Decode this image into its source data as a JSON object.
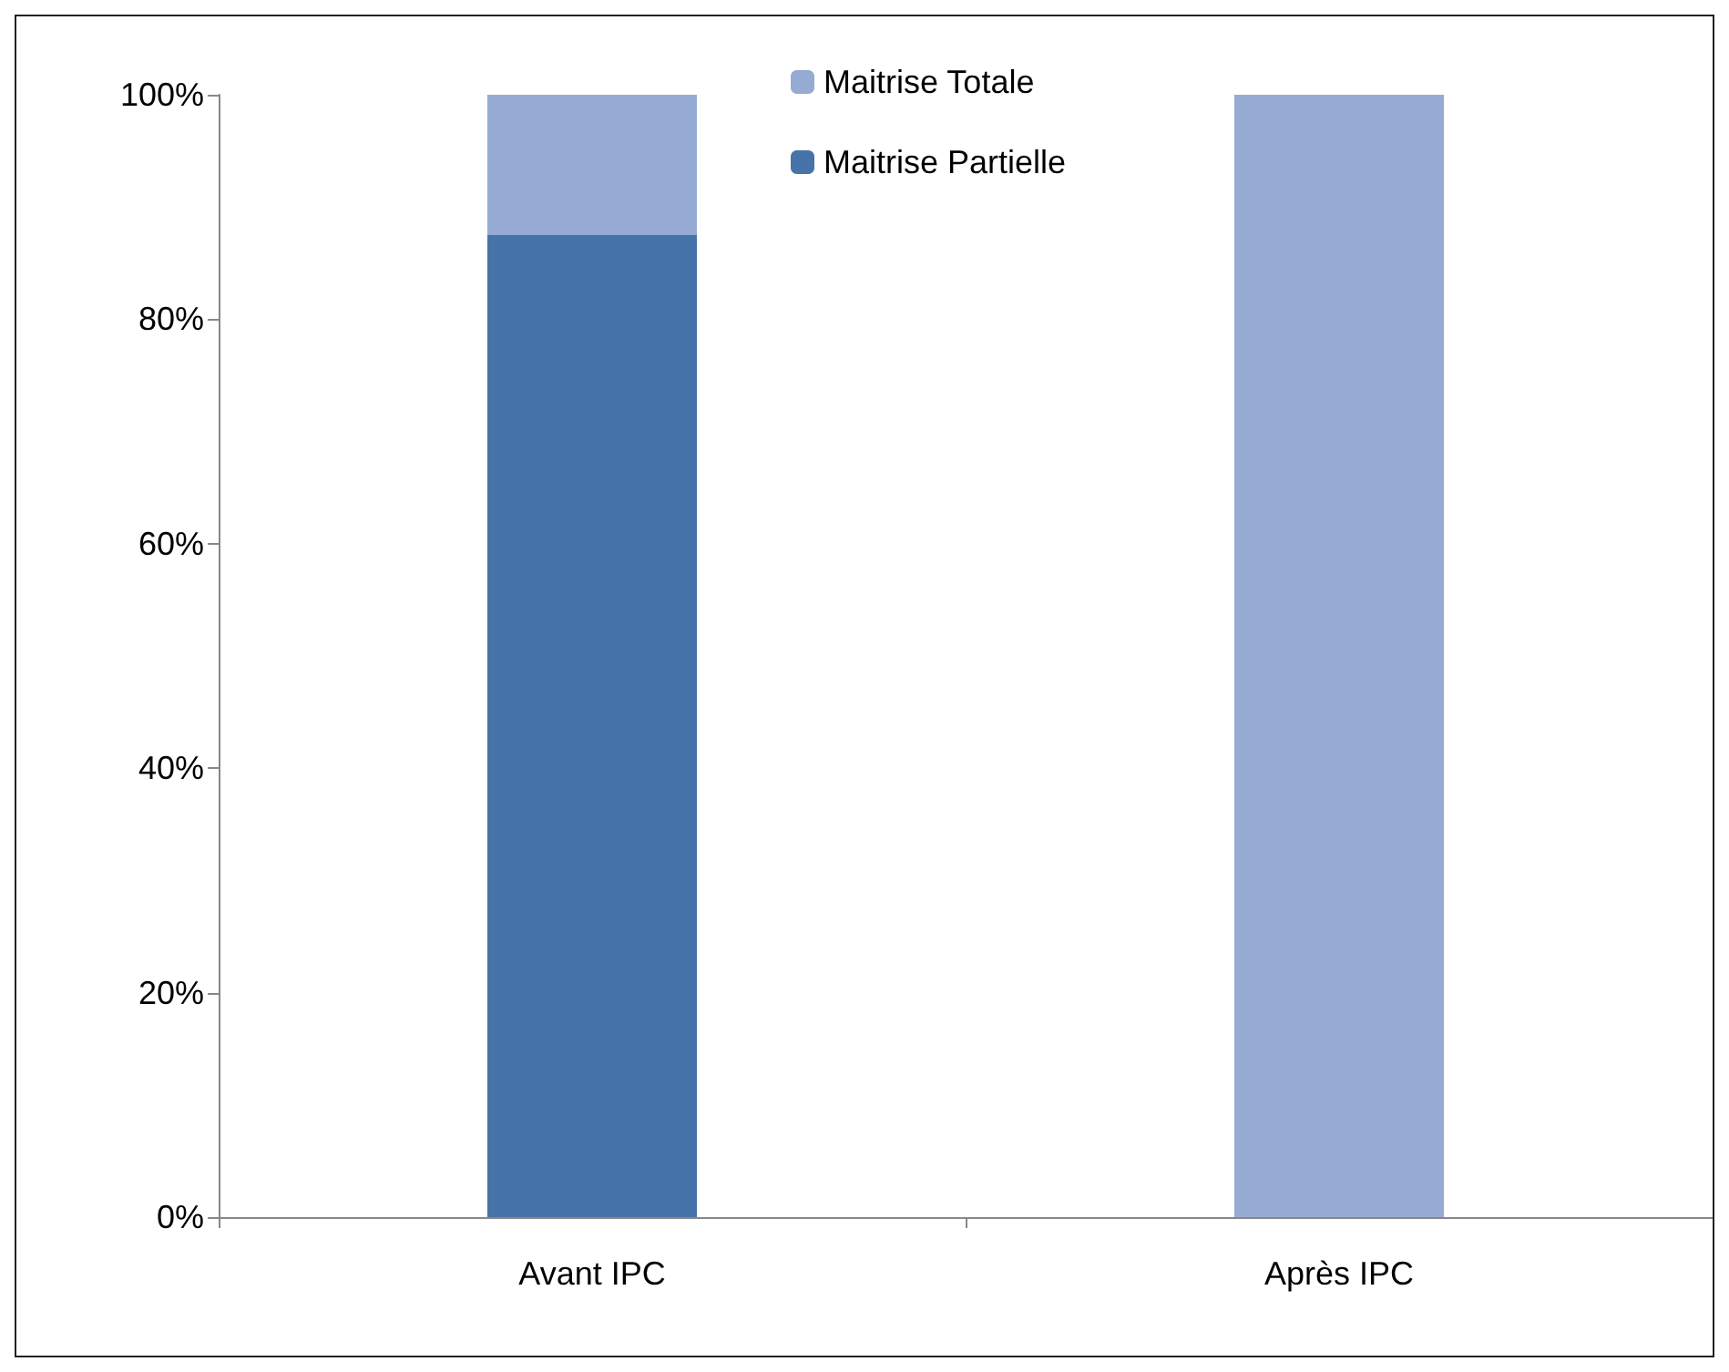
{
  "chart_data": {
    "type": "bar",
    "stacked": true,
    "categories": [
      "Avant IPC",
      "Après IPC"
    ],
    "series": [
      {
        "name": "Maitrise Partielle",
        "color": "#4674a8",
        "values": [
          87.5,
          0
        ]
      },
      {
        "name": "Maitrise Totale",
        "color": "#95abd3",
        "values": [
          12.5,
          100
        ]
      }
    ],
    "ylim": [
      0,
      100
    ],
    "yticks": [
      {
        "value": 0,
        "label": "0%"
      },
      {
        "value": 20,
        "label": "20%"
      },
      {
        "value": 40,
        "label": "40%"
      },
      {
        "value": 60,
        "label": "60%"
      },
      {
        "value": 80,
        "label": "80%"
      },
      {
        "value": 100,
        "label": "100%"
      }
    ],
    "grid": false,
    "legend": "top"
  }
}
